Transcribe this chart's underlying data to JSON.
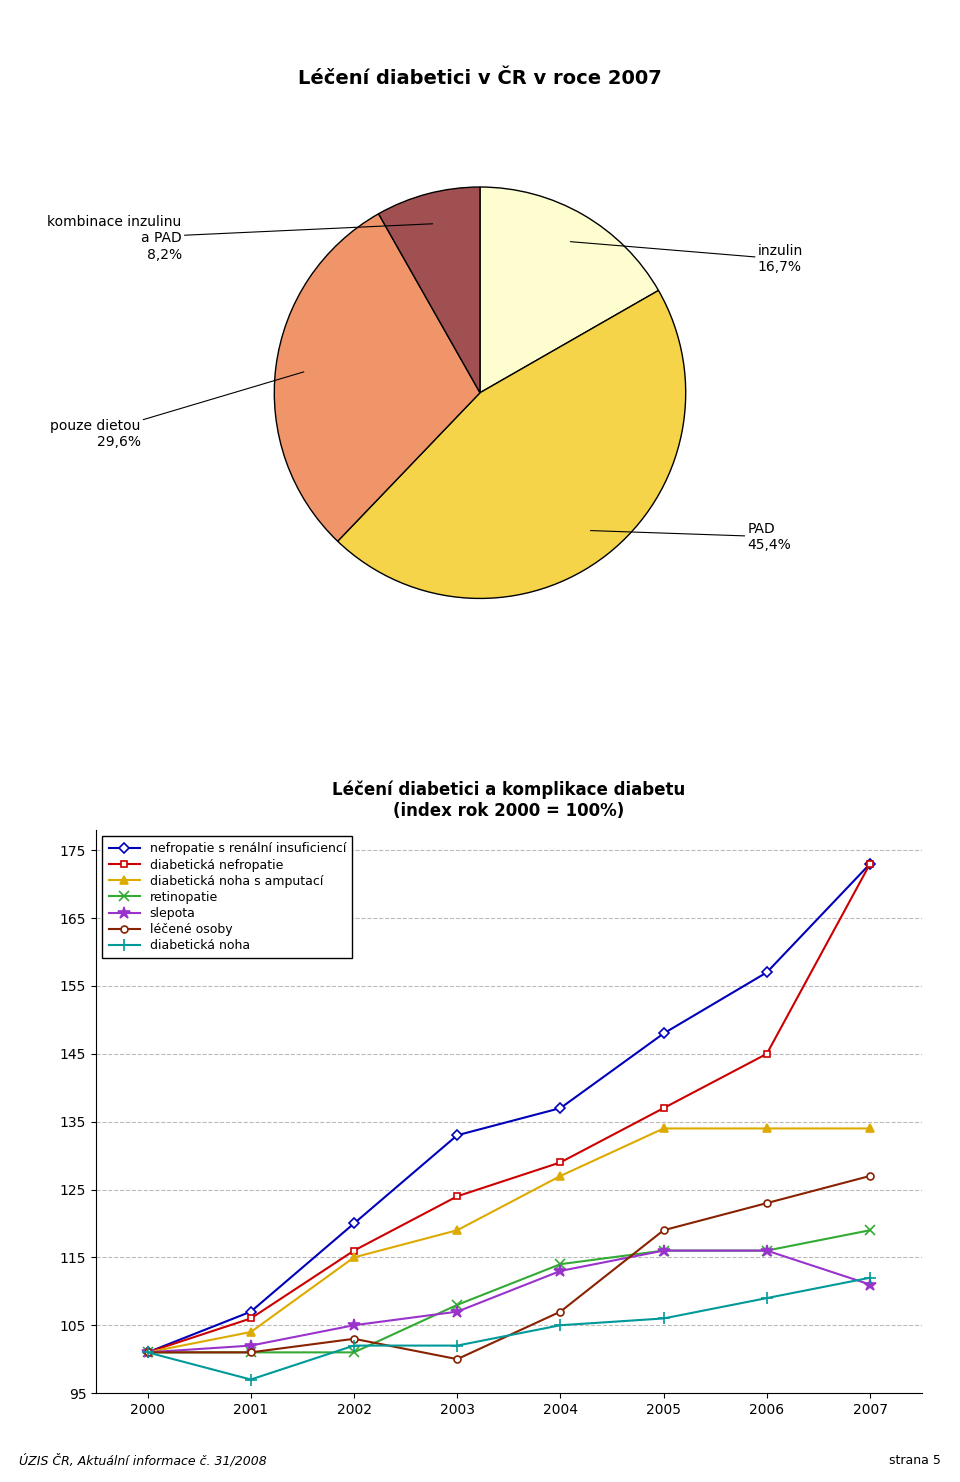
{
  "pie_title": "Léčení diabetici v ČR v roce 2007",
  "pie_values": [
    16.7,
    45.4,
    29.6,
    8.2
  ],
  "pie_colors": [
    "#FEFDD0",
    "#F5D44A",
    "#F0956A",
    "#A05050"
  ],
  "pie_label_names": [
    "inzulin",
    "PAD",
    "pouze dietou",
    "kombinace inzulinu\na PAD"
  ],
  "pie_pcts": [
    "16,7%",
    "45,4%",
    "29,6%",
    "8,2%"
  ],
  "line_title": "Léčení diabetici a komplikace diabetu\n(index rok 2000 = 100%)",
  "years": [
    2000,
    2001,
    2002,
    2003,
    2004,
    2005,
    2006,
    2007
  ],
  "series": [
    {
      "name": "nefropatie s renální insuficiencí",
      "values": [
        101,
        107,
        120,
        133,
        137,
        148,
        157,
        173
      ],
      "color": "#0000BB",
      "marker": "D",
      "mfc": "white"
    },
    {
      "name": "diabetická nefropatie",
      "values": [
        101,
        106,
        116,
        124,
        129,
        137,
        145,
        173
      ],
      "color": "#CC0000",
      "marker": "s",
      "mfc": "white"
    },
    {
      "name": "diabetická noha s amputací",
      "values": [
        101,
        104,
        115,
        119,
        127,
        134,
        134,
        134
      ],
      "color": "#DDAA00",
      "marker": "^",
      "mfc": "#DDAA00"
    },
    {
      "name": "retinopatie",
      "values": [
        101,
        101,
        101,
        108,
        114,
        116,
        116,
        119
      ],
      "color": "#33AA33",
      "marker": "x",
      "mfc": "#33AA33"
    },
    {
      "name": "slepota",
      "values": [
        101,
        102,
        105,
        107,
        113,
        116,
        116,
        111
      ],
      "color": "#9933CC",
      "marker": "*",
      "mfc": "#9933CC"
    },
    {
      "name": "léčené osoby",
      "values": [
        101,
        101,
        103,
        100,
        107,
        119,
        123,
        127
      ],
      "color": "#882200",
      "marker": "o",
      "mfc": "white"
    },
    {
      "name": "diabetická noha",
      "values": [
        101,
        97,
        102,
        102,
        105,
        106,
        109,
        112
      ],
      "color": "#009999",
      "marker": "+",
      "mfc": "#009999"
    }
  ],
  "ylim": [
    95,
    178
  ],
  "yticks": [
    95,
    105,
    115,
    125,
    135,
    145,
    155,
    165,
    175
  ],
  "footer_left": "ÚZIS ČR, Aktuální informace č. 31/2008",
  "footer_right": "strana 5"
}
